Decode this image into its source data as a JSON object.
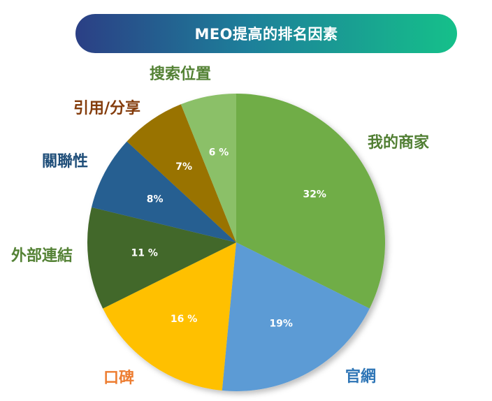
{
  "title": "MEO提高的排名因素",
  "chart_data": {
    "type": "pie",
    "title": "MEO提高的排名因素",
    "start_angle_deg": 0,
    "direction": "clockwise",
    "slices": [
      {
        "label": "我的商家",
        "value": 32,
        "value_text": "32%",
        "color": "#70ad47",
        "label_color": "#507e32"
      },
      {
        "label": "官網",
        "value": 19,
        "value_text": "19%",
        "color": "#5b9bd5",
        "label_color": "#2e75b6"
      },
      {
        "label": "口碑",
        "value": 16,
        "value_text": "16 %",
        "color": "#ffc000",
        "label_color": "#ed7d31"
      },
      {
        "label": "外部連結",
        "value": 11,
        "value_text": "11 %",
        "color": "#43682b",
        "label_color": "#548235"
      },
      {
        "label": "關聯性",
        "value": 8,
        "value_text": "8%",
        "color": "#255e91",
        "label_color": "#1f4e79"
      },
      {
        "label": "引用/分享",
        "value": 7,
        "value_text": "7%",
        "color": "#997300",
        "label_color": "#843c0c"
      },
      {
        "label": "搜索位置",
        "value": 6,
        "value_text": "6 %",
        "color": "#8bc067",
        "label_color": "#548235"
      }
    ]
  }
}
